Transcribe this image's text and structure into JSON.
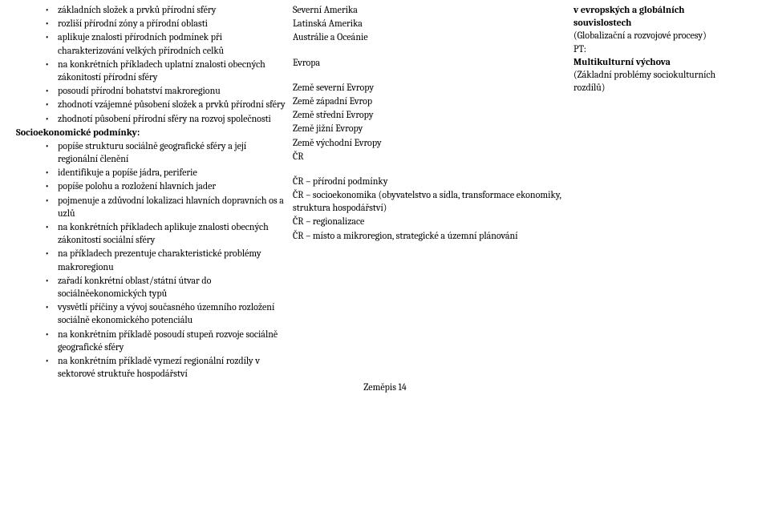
{
  "meta": {
    "footer": "Zeměpis 14"
  },
  "col1": {
    "preBullets": [
      "základních složek a prvků přírodní sféry",
      "rozliší přírodní zóny a přírodní oblasti",
      "aplikuje znalosti přírodních podmínek při charakterizování velkých přírodních celků",
      "na konkrétních příkladech uplatní znalosti obecných zákonitostí přírodní sféry",
      "posoudí přírodní bohatství makroregionu",
      "zhodnotí vzájemné působení složek a prvků přírodní sféry",
      "zhodnotí působení přírodní sféry na rozvoj společnosti"
    ],
    "sectionTitle": "Socioekonomické podmínky:",
    "postBullets": [
      "popíše strukturu sociálně geografické sféry a její regionální členění",
      "identifikuje a popíše jádra, periferie",
      "popíše polohu a rozložení hlavních jader",
      "pojmenuje a zdůvodní lokalizaci hlavních dopravních os a uzlů",
      "na konkrétních příkladech aplikuje znalosti obecných zákonitostí sociální sféry",
      "na příkladech prezentuje charakteristické problémy makroregionu",
      "zařadí konkrétní oblast/státní útvar do sociálněekonomických typů",
      "vysvětlí příčiny a vývoj současného územního rozložení sociálně ekonomického potenciálu",
      "na konkrétním příkladě posoudí stupeň rozvoje sociálně geografické sféry",
      "na konkrétním příkladě vymezí regionální rozdíly v sektorové struktuře hospodářství"
    ]
  },
  "col2": {
    "block1": [
      "Severní Amerika",
      "Latinská Amerika",
      "Austrálie a Oceánie"
    ],
    "block2": [
      "Evropa"
    ],
    "block3": [
      "Země severní Evropy",
      "Země západní Evrop",
      "Země střední Evropy",
      "Země jižní Evropy",
      "Země východní Evropy",
      "ČR"
    ],
    "block4": [
      "ČR – přírodní podmínky",
      "ČR – socioekonomika (obyvatelstvo a sídla, transformace ekonomiky, struktura hospodářství)",
      "ČR – regionalizace",
      "ČR – místo a mikroregion, strategické a územní plánování"
    ]
  },
  "col3": {
    "line1a": "v evropských a globálních",
    "line1b": "souvislostech",
    "line2": "(Globalizační a rozvojové procesy)",
    "line3": "PT:",
    "line4": "Multikulturní výchova",
    "line5": "(Základní problémy sociokulturních rozdílů)"
  }
}
